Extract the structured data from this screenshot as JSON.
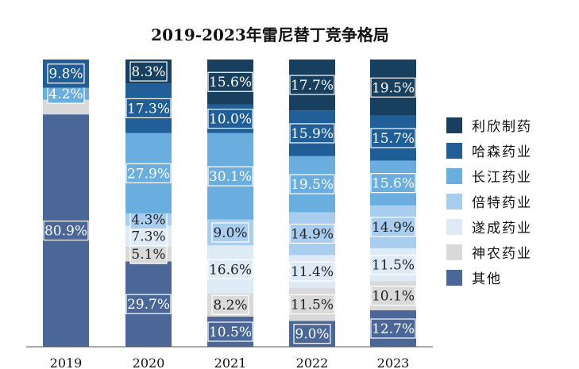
{
  "chart_data": {
    "type": "bar",
    "stacked": true,
    "percent_stacked": true,
    "title": "2019-2023年雷尼替丁竞争格局",
    "categories": [
      "2019",
      "2020",
      "2021",
      "2022",
      "2023"
    ],
    "series": [
      {
        "name": "其他",
        "color": "#4a6797",
        "values": [
          80.9,
          29.7,
          10.5,
          9.0,
          12.7
        ]
      },
      {
        "name": "神农药业",
        "color": "#d9d9d9",
        "values": [
          5.1,
          5.1,
          8.2,
          11.5,
          10.1
        ]
      },
      {
        "name": "遂成药业",
        "color": "#deebf7",
        "values": [
          0,
          7.3,
          16.6,
          11.4,
          11.5
        ]
      },
      {
        "name": "倍特药业",
        "color": "#a8cdee",
        "values": [
          0,
          4.3,
          9.0,
          14.9,
          14.9
        ]
      },
      {
        "name": "长江药业",
        "color": "#6aaedf",
        "values": [
          4.2,
          27.9,
          30.1,
          19.5,
          15.6
        ]
      },
      {
        "name": "哈森药业",
        "color": "#1f5e96",
        "values": [
          9.8,
          17.3,
          10.0,
          15.9,
          15.7
        ]
      },
      {
        "name": "利欣制药",
        "color": "#183f5e",
        "values": [
          0,
          8.3,
          15.6,
          17.7,
          19.5
        ]
      }
    ],
    "data_labels": [
      [
        "80.9%",
        "29.7%",
        "10.5%",
        "9.0%",
        "12.7%"
      ],
      [
        "",
        "5.1%",
        "8.2%",
        "11.5%",
        "10.1%"
      ],
      [
        "",
        "7.3%",
        "16.6%",
        "11.4%",
        "11.5%"
      ],
      [
        "",
        "4.3%",
        "9.0%",
        "14.9%",
        "14.9%"
      ],
      [
        "4.2%",
        "27.9%",
        "30.1%",
        "19.5%",
        "15.6%"
      ],
      [
        "9.8%",
        "17.3%",
        "10.0%",
        "15.9%",
        "15.7%"
      ],
      [
        "",
        "8.3%",
        "15.6%",
        "17.7%",
        "19.5%"
      ]
    ],
    "legend_order": [
      "利欣制药",
      "哈森药业",
      "长江药业",
      "倍特药业",
      "遂成药业",
      "神农药业",
      "其他"
    ],
    "legend_position": "right",
    "ylim": [
      0,
      100
    ],
    "grid": false
  }
}
